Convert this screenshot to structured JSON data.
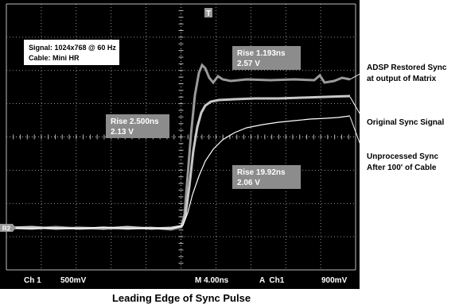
{
  "markers": {
    "trigger": "T",
    "reference": "R2"
  },
  "info_box": {
    "line1": "Signal: 1024x768 @ 60 Hz",
    "line2": "Cable: Mini HR"
  },
  "rise_boxes": [
    {
      "line1": "Rise 1.193ns",
      "line2": "2.57 V"
    },
    {
      "line1": "Rise 2.500ns",
      "line2": "2.13 V"
    },
    {
      "line1": "Rise 19.92ns",
      "line2": "2.06 V"
    }
  ],
  "annotations": [
    {
      "line1": "ADSP Restored Sync",
      "line2": "at output of Matrix"
    },
    {
      "line1": "Original Sync Signal"
    },
    {
      "line1": "Unprocessed Sync",
      "line2": "After 100' of Cable"
    }
  ],
  "status_bar": {
    "channel": "Ch 1",
    "scale": "500mV",
    "timebase": "M 4.00ns",
    "trigger": "A  Ch1",
    "level": "900mV"
  },
  "caption": "Leading Edge of Sync Pulse"
}
